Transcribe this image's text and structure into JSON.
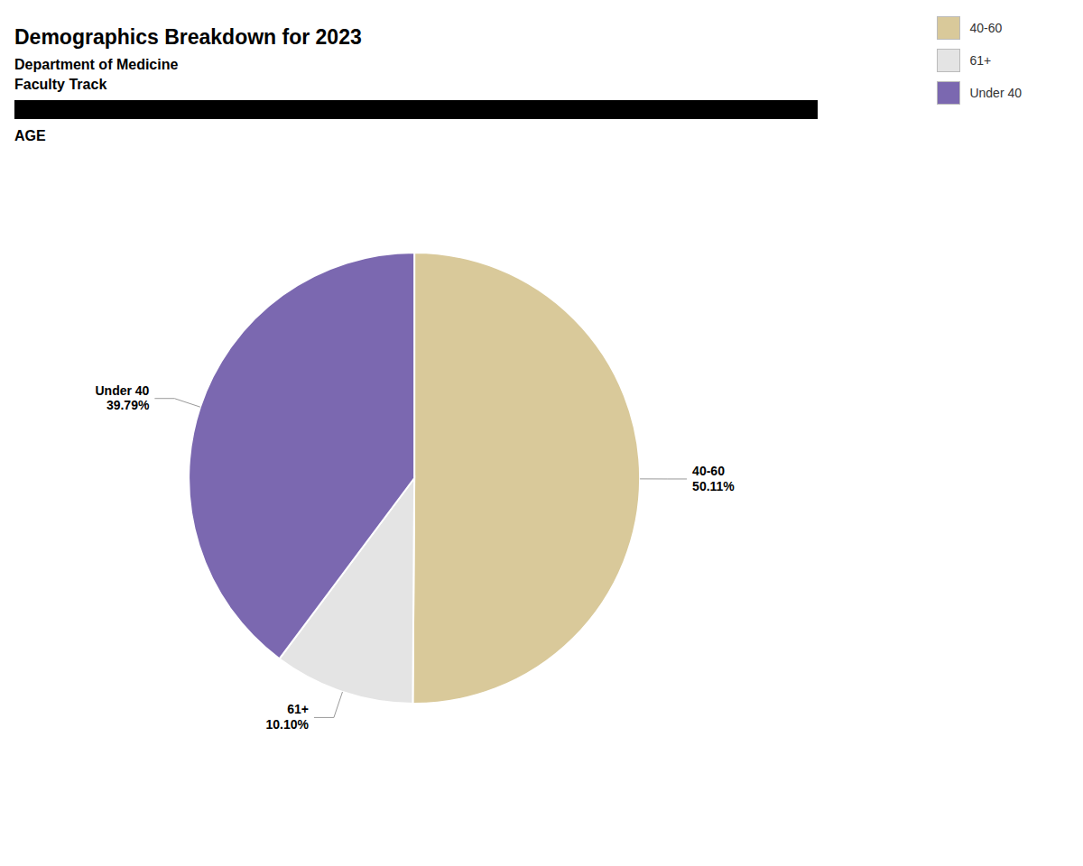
{
  "chart_data": {
    "type": "pie",
    "title": "Demographics Breakdown for 2023",
    "subtitle": [
      "Department of Medicine",
      "Faculty Track",
      "AGE"
    ],
    "categories": [
      "40-60",
      "61+",
      "Under 40"
    ],
    "values": [
      50.11,
      10.1,
      39.79
    ],
    "value_labels": [
      "50.11%",
      "10.10%",
      "39.79%"
    ],
    "colors": [
      "#d9c99a",
      "#e4e4e4",
      "#7b68b0"
    ],
    "data_labels": true,
    "legend": "upper right"
  }
}
